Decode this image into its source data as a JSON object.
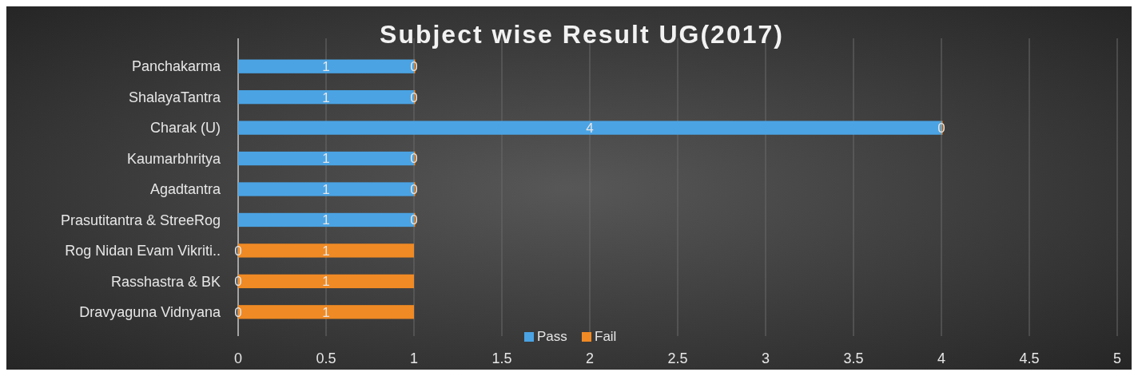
{
  "chart_data": {
    "type": "bar",
    "title": "Subject wise Result UG(2017)",
    "orientation": "horizontal",
    "stacked": true,
    "categories": [
      "Panchakarma",
      "ShalayaTantra",
      "Charak (U)",
      "Kaumarbhritya",
      "Agadtantra",
      "Prasutitantra & StreeRog",
      "Rog Nidan Evam Vikriti..",
      "Rasshastra & BK",
      "Dravyaguna Vidnyana"
    ],
    "series": [
      {
        "name": "Pass",
        "color": "#4ba3e3",
        "values": [
          1,
          1,
          4,
          1,
          1,
          1,
          0,
          0,
          0
        ]
      },
      {
        "name": "Fail",
        "color": "#f08a24",
        "values": [
          0,
          0,
          0,
          0,
          0,
          0,
          1,
          1,
          1
        ]
      }
    ],
    "xlim": [
      0,
      5
    ],
    "xticks": [
      0,
      0.5,
      1,
      1.5,
      2,
      2.5,
      3,
      3.5,
      4,
      4.5,
      5
    ],
    "grid": "x",
    "legend": "bottom",
    "data_labels": true
  }
}
